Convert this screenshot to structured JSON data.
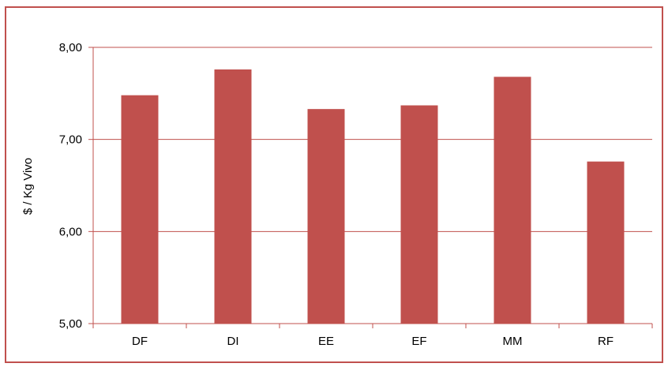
{
  "chart_data": {
    "type": "bar",
    "categories": [
      "DF",
      "DI",
      "EE",
      "EF",
      "MM",
      "RF"
    ],
    "values": [
      7.48,
      7.76,
      7.33,
      7.37,
      7.68,
      6.76
    ],
    "ylabel": "$ / Kg Vivo",
    "ylim": [
      5,
      8
    ],
    "yticks": [
      "5,00",
      "6,00",
      "7,00",
      "8,00"
    ],
    "ytick_values": [
      5,
      6,
      7,
      8
    ],
    "grid": true,
    "colors": {
      "bar": "#c0504d",
      "grid": "#c0504d",
      "border": "#c0504d"
    }
  }
}
